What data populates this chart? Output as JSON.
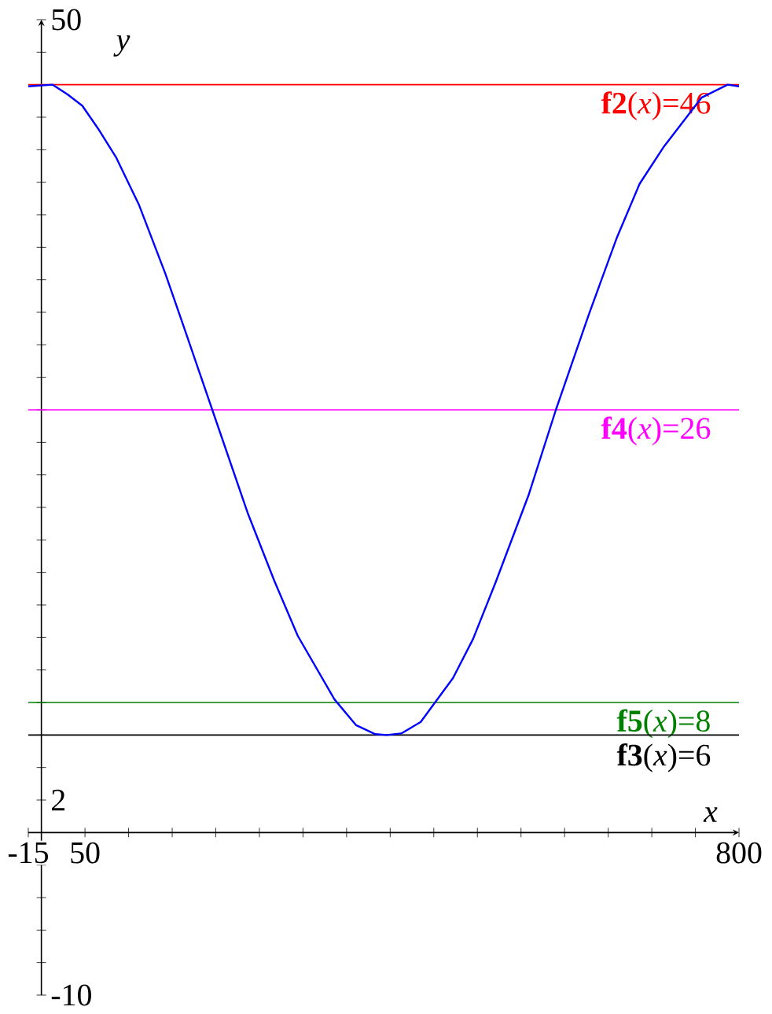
{
  "chart_data": {
    "type": "line",
    "xlabel": "x",
    "ylabel": "y",
    "xlim": [
      -15,
      800
    ],
    "ylim": [
      -10,
      50
    ],
    "xticks": [
      {
        "value": -15,
        "label": "-15"
      },
      {
        "value": 50,
        "label": "50"
      },
      {
        "value": 100,
        "label": null
      },
      {
        "value": 150,
        "label": null
      },
      {
        "value": 200,
        "label": null
      },
      {
        "value": 250,
        "label": null
      },
      {
        "value": 300,
        "label": null
      },
      {
        "value": 350,
        "label": null
      },
      {
        "value": 400,
        "label": null
      },
      {
        "value": 450,
        "label": null
      },
      {
        "value": 500,
        "label": null
      },
      {
        "value": 550,
        "label": null
      },
      {
        "value": 600,
        "label": null
      },
      {
        "value": 650,
        "label": null
      },
      {
        "value": 700,
        "label": null
      },
      {
        "value": 750,
        "label": null
      },
      {
        "value": 800,
        "label": "800"
      }
    ],
    "yticks": [
      {
        "value": -10,
        "label": "-10"
      },
      {
        "value": -8,
        "label": null
      },
      {
        "value": -6,
        "label": null
      },
      {
        "value": -4,
        "label": null
      },
      {
        "value": -2,
        "label": null
      },
      {
        "value": 2,
        "label": "2"
      },
      {
        "value": 4,
        "label": null
      },
      {
        "value": 6,
        "label": null
      },
      {
        "value": 8,
        "label": null
      },
      {
        "value": 10,
        "label": null
      },
      {
        "value": 12,
        "label": null
      },
      {
        "value": 14,
        "label": null
      },
      {
        "value": 16,
        "label": null
      },
      {
        "value": 18,
        "label": null
      },
      {
        "value": 20,
        "label": null
      },
      {
        "value": 22,
        "label": null
      },
      {
        "value": 24,
        "label": null
      },
      {
        "value": 26,
        "label": null
      },
      {
        "value": 28,
        "label": null
      },
      {
        "value": 30,
        "label": null
      },
      {
        "value": 32,
        "label": null
      },
      {
        "value": 34,
        "label": null
      },
      {
        "value": 36,
        "label": null
      },
      {
        "value": 38,
        "label": null
      },
      {
        "value": 40,
        "label": null
      },
      {
        "value": 42,
        "label": null
      },
      {
        "value": 44,
        "label": null
      },
      {
        "value": 46,
        "label": null
      },
      {
        "value": 48,
        "label": null
      },
      {
        "value": 50,
        "label": "50"
      }
    ],
    "series": [
      {
        "color": "#0000ff",
        "x": [
          -15,
          13,
          30,
          47,
          65,
          86,
          112,
          142,
          164,
          196,
          237,
          267,
          294,
          336,
          361,
          383,
          396,
          413,
          435,
          472,
          495,
          521,
          559,
          590,
          628,
          660,
          686,
          714,
          757,
          787,
          800
        ],
        "values": [
          45.9,
          46,
          45.4,
          44.7,
          43.3,
          41.5,
          38.6,
          34.4,
          31,
          26,
          19.6,
          15.5,
          12.1,
          8.2,
          6.6,
          6.05,
          6,
          6.1,
          6.8,
          9.5,
          11.9,
          15.4,
          20.8,
          26,
          31.9,
          36.6,
          39.9,
          42.2,
          45.2,
          46,
          45.9
        ]
      }
    ],
    "ref_lines": [
      {
        "axis": "y",
        "value": 46,
        "label": "**f2**(*x*)=46",
        "color": "#ff0000"
      },
      {
        "axis": "y",
        "value": 26,
        "label": "**f4**(*x*)=26",
        "color": "#ff00ff"
      },
      {
        "axis": "y",
        "value": 8,
        "label": "**f5**(*x*)=8",
        "color": "#008000"
      },
      {
        "axis": "y",
        "value": 6,
        "label": "**f3**(*x*)=6",
        "color": "#000000"
      }
    ]
  }
}
